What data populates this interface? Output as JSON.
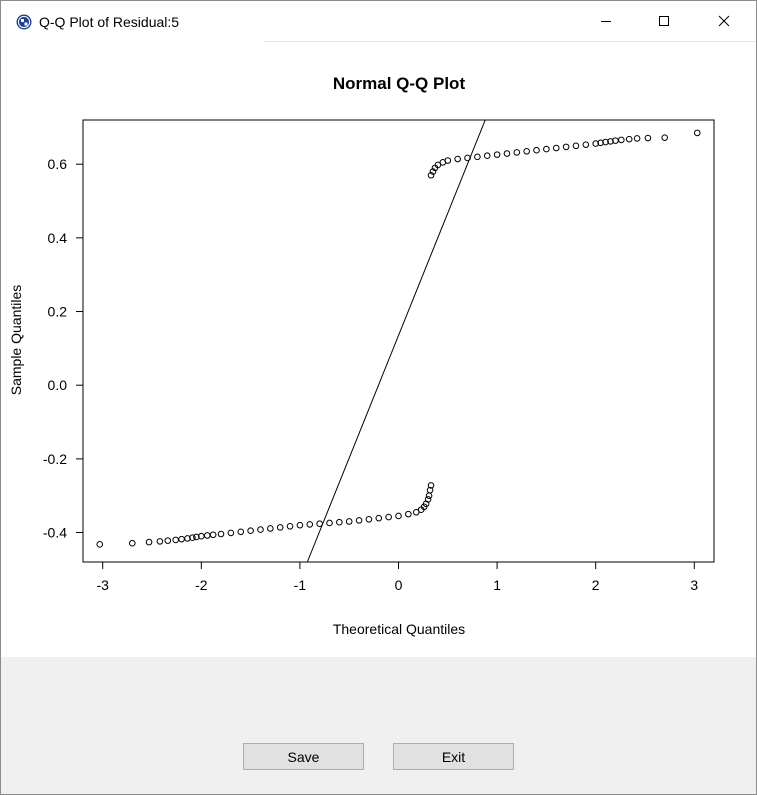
{
  "window": {
    "title": "Q-Q Plot of Residual:5",
    "controls": {
      "minimize": "minimize",
      "maximize": "maximize",
      "close": "close"
    }
  },
  "chart_data": {
    "type": "scatter",
    "title": "Normal Q-Q Plot",
    "xlabel": "Theoretical Quantiles",
    "ylabel": "Sample Quantiles",
    "xlim": [
      -3.2,
      3.2
    ],
    "ylim": [
      -0.48,
      0.72
    ],
    "x_ticks": [
      -3,
      -2,
      -1,
      0,
      1,
      2,
      3
    ],
    "x_tick_labels": [
      "-3",
      "-2",
      "-1",
      "0",
      "1",
      "2",
      "3"
    ],
    "y_ticks": [
      -0.4,
      -0.2,
      0.0,
      0.2,
      0.4,
      0.6
    ],
    "y_tick_labels": [
      "-0.4",
      "-0.2",
      "0.0",
      "0.2",
      "0.4",
      "0.6"
    ],
    "reference_line": {
      "x": [
        -1.0,
        1.0
      ],
      "y": [
        -0.53,
        0.8
      ]
    },
    "series": [
      {
        "x": [
          -3.03,
          -2.7,
          -2.53,
          -2.42,
          -2.34,
          -2.26,
          -2.2,
          -2.14,
          -2.09,
          -2.05,
          -2.0,
          -1.94,
          -1.88,
          -1.8,
          -1.7,
          -1.6,
          -1.5,
          -1.4,
          -1.3,
          -1.2,
          -1.1,
          -1.0,
          -0.9,
          -0.8,
          -0.7,
          -0.6,
          -0.5,
          -0.4,
          -0.3,
          -0.2,
          -0.1,
          0.0,
          0.1,
          0.18,
          0.23,
          0.26,
          0.28,
          0.3,
          0.31,
          0.32,
          0.33
        ],
        "y": [
          -0.432,
          -0.429,
          -0.426,
          -0.424,
          -0.422,
          -0.42,
          -0.418,
          -0.416,
          -0.414,
          -0.412,
          -0.41,
          -0.408,
          -0.406,
          -0.404,
          -0.401,
          -0.398,
          -0.395,
          -0.392,
          -0.389,
          -0.386,
          -0.383,
          -0.38,
          -0.378,
          -0.376,
          -0.374,
          -0.372,
          -0.37,
          -0.367,
          -0.364,
          -0.361,
          -0.358,
          -0.355,
          -0.35,
          -0.345,
          -0.338,
          -0.33,
          -0.322,
          -0.31,
          -0.3,
          -0.285,
          -0.272
        ]
      },
      {
        "x": [
          0.33,
          0.35,
          0.37,
          0.4,
          0.45,
          0.5,
          0.6,
          0.7,
          0.8,
          0.9,
          1.0,
          1.1,
          1.2,
          1.3,
          1.4,
          1.5,
          1.6,
          1.7,
          1.8,
          1.9,
          2.0,
          2.05,
          2.1,
          2.15,
          2.2,
          2.26,
          2.34,
          2.42,
          2.53,
          2.7,
          3.03
        ],
        "y": [
          0.57,
          0.58,
          0.59,
          0.598,
          0.605,
          0.61,
          0.614,
          0.617,
          0.62,
          0.623,
          0.626,
          0.629,
          0.632,
          0.635,
          0.638,
          0.641,
          0.644,
          0.647,
          0.65,
          0.653,
          0.656,
          0.658,
          0.66,
          0.662,
          0.664,
          0.666,
          0.668,
          0.67,
          0.671,
          0.672,
          0.685
        ]
      }
    ],
    "grid": false,
    "legend": "none"
  },
  "buttons": {
    "save": "Save",
    "exit": "Exit"
  }
}
